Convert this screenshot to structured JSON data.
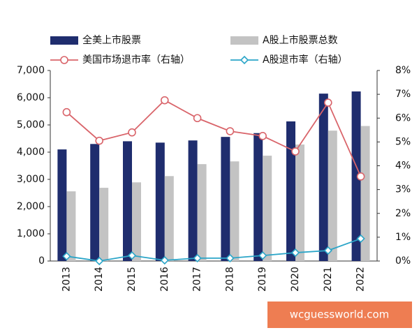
{
  "chart_data": {
    "type": "bar",
    "categories": [
      "2013",
      "2014",
      "2015",
      "2016",
      "2017",
      "2018",
      "2019",
      "2020",
      "2021",
      "2022"
    ],
    "series": [
      {
        "name": "全美上市股票",
        "color": "#1f2d6e",
        "values": [
          4100,
          4300,
          4400,
          4350,
          4430,
          4560,
          4700,
          5130,
          6150,
          6230
        ]
      },
      {
        "name": "A股上市股票总数",
        "color": "#c3c3c3",
        "values": [
          2560,
          2690,
          2890,
          3120,
          3560,
          3660,
          3870,
          4280,
          4790,
          4960
        ]
      },
      {
        "name": "美国市场退市率（右轴）",
        "color": "#d9646a",
        "axis": "y2",
        "marker": "circle",
        "values": [
          6.25,
          5.05,
          5.4,
          6.75,
          6.0,
          5.45,
          5.25,
          4.6,
          6.65,
          3.55
        ]
      },
      {
        "name": "A股退市率（右轴）",
        "color": "#2aa5c8",
        "axis": "y2",
        "marker": "diamond",
        "values": [
          0.2,
          0.0,
          0.23,
          0.03,
          0.12,
          0.12,
          0.23,
          0.35,
          0.44,
          0.94
        ]
      }
    ],
    "ylim": [
      0,
      7000
    ],
    "yticks": [
      0,
      {
        "value": 1000,
        "label": "1,000"
      },
      {
        "value": 2000,
        "label": "2,000"
      },
      {
        "value": 3000,
        "label": "3,000"
      },
      {
        "value": 4000,
        "label": "4,000"
      },
      {
        "value": 5000,
        "label": "5,000"
      },
      {
        "value": 6000,
        "label": "6,000"
      },
      {
        "value": 7000,
        "label": "7,000"
      }
    ],
    "y2lim": [
      0,
      8
    ],
    "y2ticks": [
      {
        "value": 0,
        "label": "0%"
      },
      {
        "value": 1,
        "label": "1%"
      },
      {
        "value": 2,
        "label": "2%"
      },
      {
        "value": 3,
        "label": "3%"
      },
      {
        "value": 4,
        "label": "4%"
      },
      {
        "value": 5,
        "label": "5%"
      },
      {
        "value": 6,
        "label": "6%"
      },
      {
        "value": 7,
        "label": "7%"
      },
      {
        "value": 8,
        "label": "8%"
      }
    ],
    "watermark": "wcguessworld.com"
  }
}
